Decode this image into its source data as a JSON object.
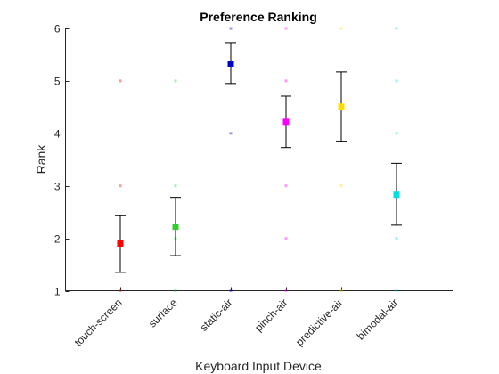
{
  "chart_data": {
    "type": "scatter",
    "title": "Preference Ranking",
    "xlabel": "Keyboard Input Device",
    "ylabel": "Rank",
    "ylim": [
      1,
      6
    ],
    "yticks": [
      1,
      2,
      3,
      4,
      5,
      6
    ],
    "grid": false,
    "legend": "none",
    "categories": [
      "touch-screen",
      "surface",
      "static-air",
      "pinch-air",
      "predictive-air",
      "bimodal-air"
    ],
    "series": [
      {
        "category": "touch-screen",
        "color": "#ff0000",
        "mean": 1.9,
        "err_low": 1.35,
        "err_high": 2.43,
        "points": [
          1,
          3,
          5
        ]
      },
      {
        "category": "surface",
        "color": "#33cc33",
        "mean": 2.22,
        "err_low": 1.67,
        "err_high": 2.78,
        "points": [
          1,
          2,
          3,
          5
        ]
      },
      {
        "category": "static-air",
        "color": "#0000cc",
        "mean": 5.33,
        "err_low": 4.95,
        "err_high": 5.73,
        "points": [
          1,
          4,
          6
        ]
      },
      {
        "category": "pinch-air",
        "color": "#ff00ff",
        "mean": 4.22,
        "err_low": 3.73,
        "err_high": 4.71,
        "points": [
          1,
          2,
          3,
          5,
          6
        ]
      },
      {
        "category": "predictive-air",
        "color": "#ffdd00",
        "mean": 4.51,
        "err_low": 3.85,
        "err_high": 5.17,
        "points": [
          1,
          3,
          6
        ]
      },
      {
        "category": "bimodal-air",
        "color": "#00dddd",
        "mean": 2.83,
        "err_low": 2.25,
        "err_high": 3.43,
        "points": [
          1,
          2,
          4,
          5,
          6
        ]
      }
    ]
  }
}
